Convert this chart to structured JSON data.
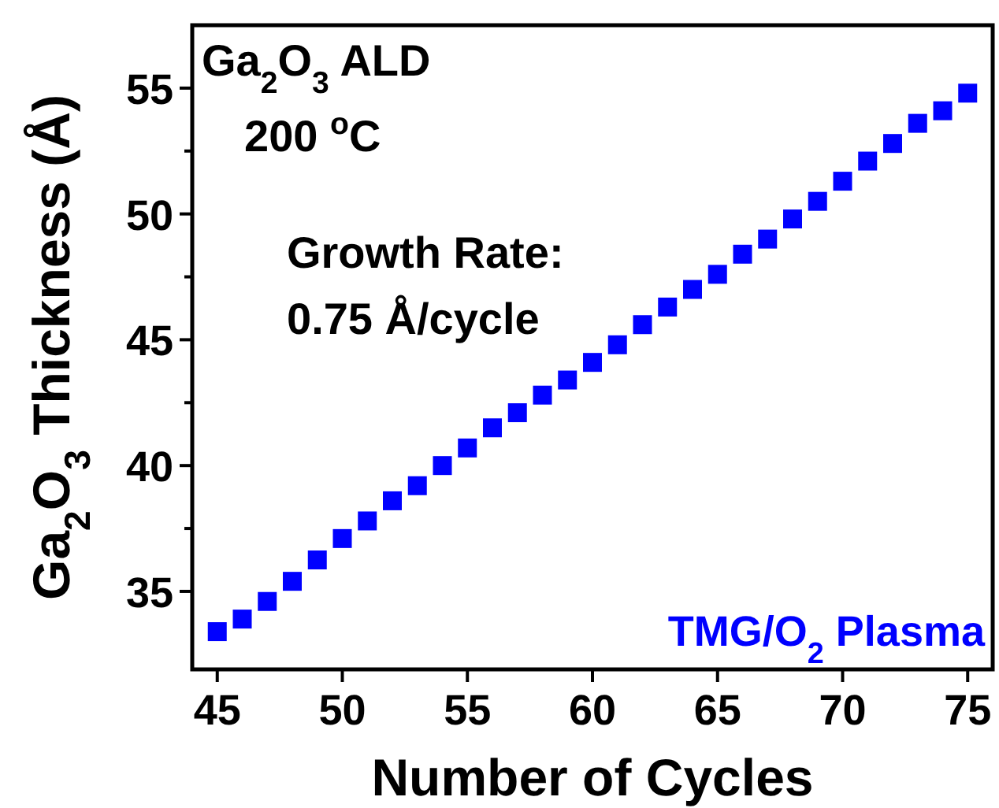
{
  "chart_data": {
    "type": "scatter",
    "xlabel": "Number of Cycles",
    "ylabel": "Ga$_{2}$O$_{3}$ Thickness (Å)",
    "x": [
      45,
      46,
      47,
      48,
      49,
      50,
      51,
      52,
      53,
      54,
      55,
      56,
      57,
      58,
      59,
      60,
      61,
      62,
      63,
      64,
      65,
      66,
      67,
      68,
      69,
      70,
      71,
      72,
      73,
      74,
      75
    ],
    "series": [
      {
        "name": "TMG/O$_{2}$ Plasma",
        "color": "#0000ff",
        "values": [
          33.4,
          33.9,
          34.6,
          35.4,
          36.25,
          37.1,
          37.8,
          38.6,
          39.2,
          40.0,
          40.7,
          41.5,
          42.1,
          42.8,
          43.4,
          44.1,
          44.8,
          45.6,
          46.3,
          47.0,
          47.6,
          48.4,
          49.0,
          49.8,
          50.5,
          51.3,
          52.1,
          52.8,
          53.6,
          54.1,
          54.8
        ]
      }
    ],
    "xlim": [
      44,
      76
    ],
    "xticks": [
      45,
      50,
      55,
      60,
      65,
      70,
      75
    ],
    "ylim": [
      31.9,
      57.5
    ],
    "yticks": [
      35,
      {
        "value": 37.5,
        "label": null
      },
      40,
      {
        "value": 42.5,
        "label": null
      },
      45,
      {
        "value": 47.5,
        "label": null
      },
      50,
      {
        "value": 52.5,
        "label": null
      },
      55
    ],
    "annotations": [
      "Ga$_{2}$O$_{3}$ ALD",
      "200 $^{o}$C",
      "Growth Rate:",
      "0.75 Å/cycle"
    ],
    "marker": "square",
    "legend": "bottom right",
    "grid": false
  }
}
